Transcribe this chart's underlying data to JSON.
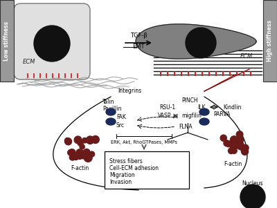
{
  "bg_color": "#ffffff",
  "low_stiffness_label": "Low stiffness",
  "high_stiffness_label": "High stiffness",
  "ecm_label_left": "ECM",
  "ecm_label_right": "ECM",
  "tgf_label": "TGF-β",
  "emt_label": "EMT",
  "integrins_label": "Integrins",
  "talin_label": "Talin",
  "paxillin_label": "Paxillin",
  "fak_label": "FAK",
  "src_label": "Src",
  "rsu1_label": "RSU-1",
  "pinch_label": "PINCH",
  "ilk_label": "ILK",
  "kindlin_label": "Kindlin",
  "vasp_label": "VASP",
  "migfilin_label": "migfilin",
  "flna_label": "FLNA",
  "parva_label": "PARVA",
  "factin_left_label": "F-actin",
  "factin_right_label": "F-actin",
  "erk_label": "ERK, Akt, RhoGTPases, MMPs",
  "box_lines": [
    "Stress fibers",
    "Cell-ECM adhesion",
    "Migration",
    "Invasion"
  ],
  "nucleus_label": "Nucleus",
  "cell_color_left": "#e0e0e0",
  "cell_border_left": "#777777",
  "nucleus_color": "#111111",
  "cell_color_right": "#808080",
  "ecm_fiber_color": "#999999",
  "ecm_fiber_color_right": "#111111",
  "integrin_color": "#1a2a5a",
  "factin_color": "#6b1a1a",
  "stiffness_bar_color": "#999999"
}
